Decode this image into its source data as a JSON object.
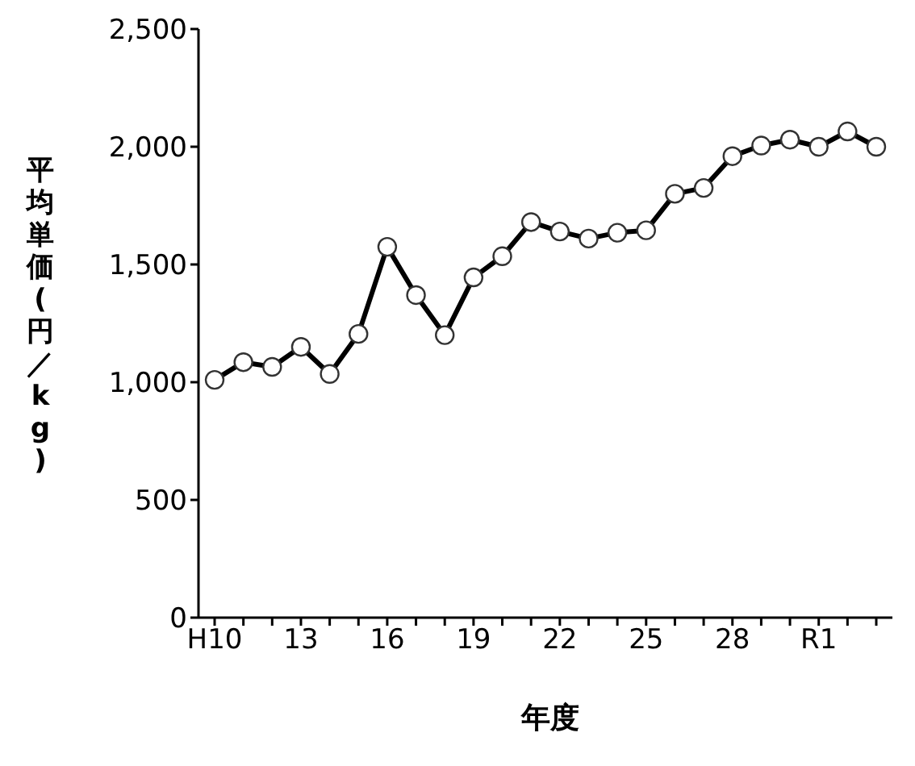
{
  "chart_data": {
    "type": "line",
    "xlabel": "年度",
    "ylabel": "平均単価(円／kg)",
    "categories": [
      "H10",
      null,
      null,
      "13",
      null,
      null,
      "16",
      null,
      null,
      "19",
      null,
      null,
      "22",
      null,
      null,
      "25",
      null,
      null,
      "28",
      null,
      null,
      "R1",
      null,
      null
    ],
    "series": [
      {
        "color": "#000000",
        "values": [
          1010,
          1085,
          1065,
          1150,
          1035,
          1205,
          1575,
          1370,
          1200,
          1445,
          1535,
          1680,
          1640,
          1610,
          1635,
          1645,
          1800,
          1825,
          1960,
          2005,
          2030,
          2000,
          2065,
          2000
        ]
      }
    ],
    "ylim": [
      0,
      2500
    ],
    "yticks": [
      {
        "value": 0,
        "label": "0"
      },
      {
        "value": 500,
        "label": "500"
      },
      {
        "value": 1000,
        "label": "1,000"
      },
      {
        "value": 1500,
        "label": "1,500"
      },
      {
        "value": 2000,
        "label": "2,000"
      },
      {
        "value": 2500,
        "label": "2,500"
      }
    ],
    "grid": false,
    "legend": false,
    "marker": "circle",
    "line_style": "solid"
  }
}
